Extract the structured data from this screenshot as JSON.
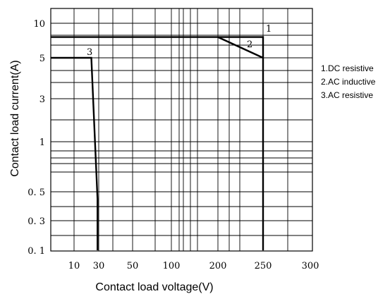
{
  "chart_data": {
    "type": "line",
    "title": "",
    "xlabel": "Contact load voltage(V)",
    "ylabel": "Contact load current(A)",
    "x_ticks": [
      {
        "label": "10",
        "value": 10
      },
      {
        "label": "30",
        "value": 30
      },
      {
        "label": "50",
        "value": 50
      },
      {
        "label": "100",
        "value": 100
      },
      {
        "label": "200",
        "value": 200
      },
      {
        "label": "250",
        "value": 250
      },
      {
        "label": "300",
        "value": 300
      }
    ],
    "y_ticks": [
      {
        "label": "10",
        "value": 10
      },
      {
        "label": "5",
        "value": 5
      },
      {
        "label": "3",
        "value": 3
      },
      {
        "label": "1",
        "value": 1
      },
      {
        "label": "0. 5",
        "value": 0.5
      },
      {
        "label": "0. 3",
        "value": 0.3
      },
      {
        "label": "0. 1",
        "value": 0.1
      }
    ],
    "grid": true,
    "legend_position": "right",
    "legend": [
      "1.DC resistive",
      "2.AC inductive",
      "3.AC resistive"
    ],
    "series": [
      {
        "label": "1",
        "points": [
          [
            0,
            8
          ],
          [
            200,
            8
          ],
          [
            250,
            8
          ],
          [
            250,
            0.1
          ]
        ]
      },
      {
        "label": "2",
        "points": [
          [
            200,
            8
          ],
          [
            250,
            5
          ]
        ]
      },
      {
        "label": "3",
        "points": [
          [
            0,
            5
          ],
          [
            24,
            5
          ],
          [
            29,
            0.45
          ],
          [
            29,
            0.1
          ]
        ]
      }
    ]
  }
}
